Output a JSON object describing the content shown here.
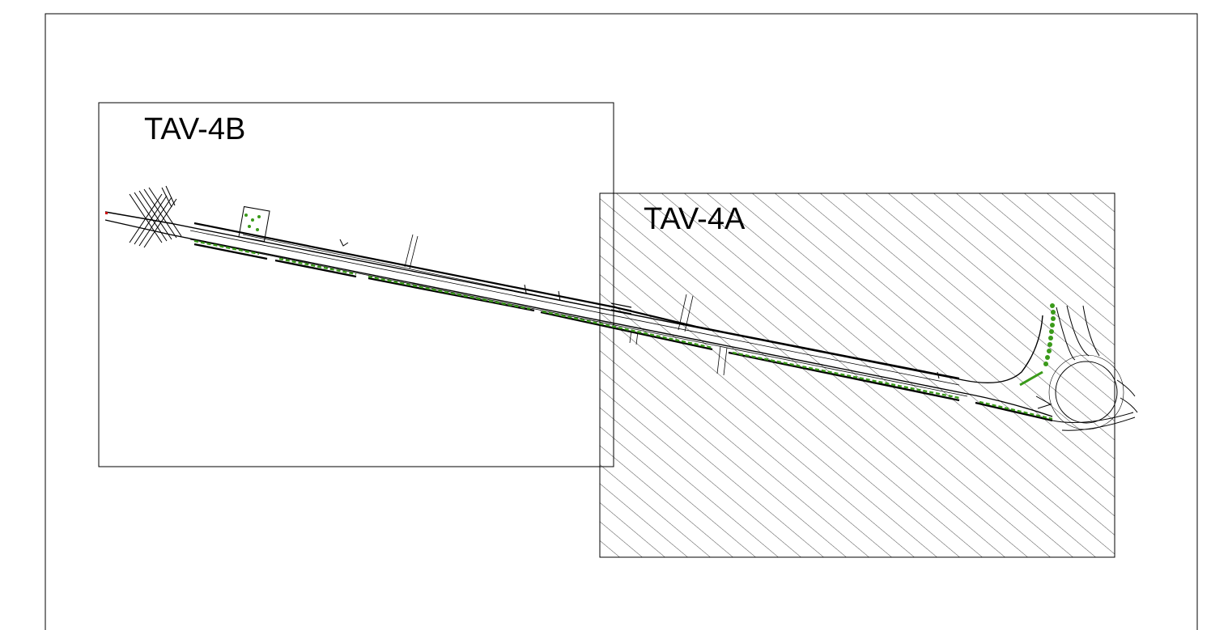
{
  "sheets": [
    {
      "label": "TAV-4B",
      "hatched": false
    },
    {
      "label": "TAV-4A",
      "hatched": true
    }
  ],
  "colors": {
    "line": "#000000",
    "vegetation": "#3a9a1a",
    "background": "#ffffff",
    "marker": "#cc0000"
  }
}
